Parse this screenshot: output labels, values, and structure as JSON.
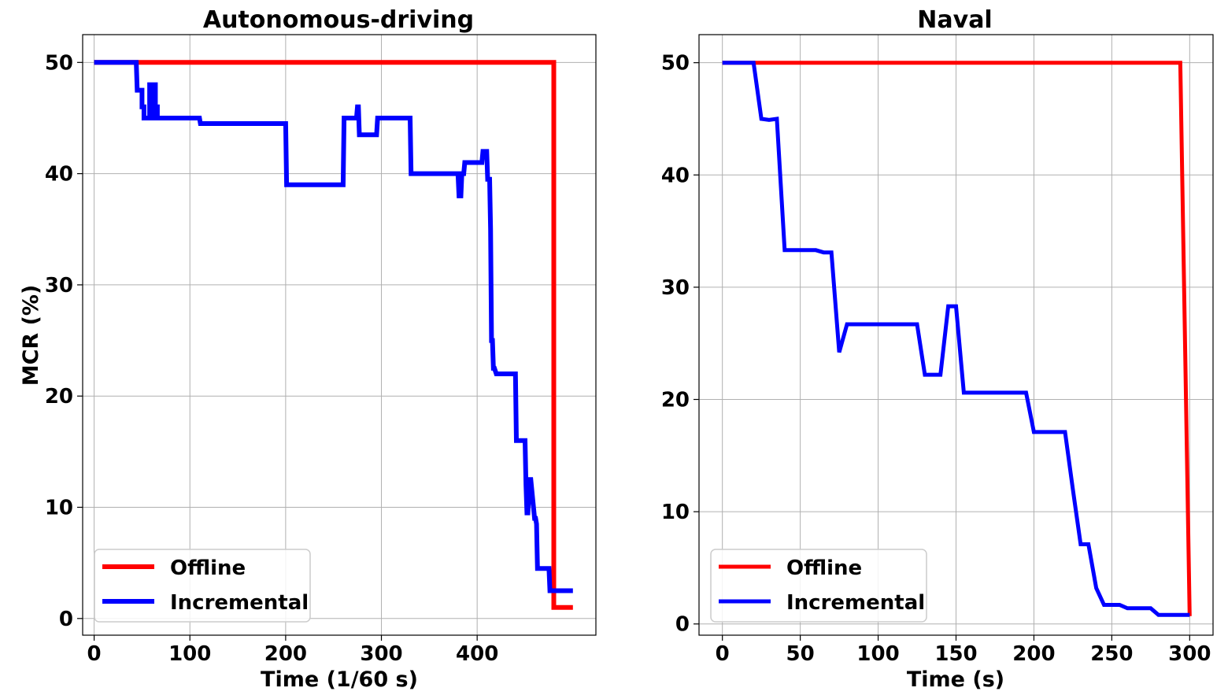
{
  "chart_data": [
    {
      "type": "line",
      "title": "Autonomous-driving",
      "xlabel": "Time (1/60 s)",
      "ylabel": "MCR (%)",
      "xlim": [
        -12,
        524
      ],
      "ylim": [
        -1.5,
        52.5
      ],
      "xticks": [
        0,
        100,
        200,
        300,
        400
      ],
      "yticks": [
        0,
        10,
        20,
        30,
        40,
        50
      ],
      "grid": true,
      "legend": "lower-left",
      "series": [
        {
          "name": "Offline",
          "color": "#ff0000",
          "x": [
            0,
            480,
            480,
            500
          ],
          "y": [
            50,
            50,
            1,
            1
          ]
        },
        {
          "name": "Incremental",
          "color": "#0000ff",
          "x": [
            0,
            44,
            45,
            50,
            50,
            52,
            52,
            58,
            58,
            60,
            60,
            62,
            62,
            64,
            64,
            66,
            66,
            110,
            111,
            200,
            201,
            260,
            261,
            274,
            275,
            276,
            277,
            295,
            296,
            330,
            331,
            380,
            381,
            383,
            384,
            386,
            387,
            405,
            406,
            410,
            411,
            413,
            414,
            415,
            416,
            417,
            418,
            420,
            421,
            440,
            441,
            450,
            451,
            452,
            453,
            455,
            456,
            460,
            461,
            462,
            463,
            465,
            466,
            475,
            476,
            480,
            481,
            500
          ],
          "y": [
            50,
            50,
            47.5,
            47.5,
            46,
            46,
            45,
            45,
            48,
            48,
            45,
            45,
            48,
            48,
            46,
            46,
            45,
            45,
            44.5,
            44.5,
            39,
            39,
            45,
            45,
            46,
            46,
            43.5,
            43.5,
            45,
            45,
            40,
            40,
            38,
            38,
            40,
            40,
            41,
            41,
            42,
            42,
            39.5,
            39.5,
            35,
            25,
            25,
            22.5,
            22.5,
            22,
            22,
            22,
            16,
            16,
            12,
            9.5,
            9.5,
            12.5,
            12.5,
            9,
            9,
            8.5,
            4.5,
            4.5,
            4.5,
            4.5,
            2.5,
            2.5,
            2.5,
            2.5
          ]
        }
      ]
    },
    {
      "type": "line",
      "title": "Naval",
      "xlabel": "Time (s)",
      "ylabel": "",
      "xlim": [
        -15,
        315
      ],
      "ylim": [
        -1,
        52.5
      ],
      "xticks": [
        0,
        50,
        100,
        150,
        200,
        250,
        300
      ],
      "yticks": [
        0,
        10,
        20,
        30,
        40,
        50
      ],
      "grid": true,
      "legend": "lower-left",
      "series": [
        {
          "name": "Offline",
          "color": "#ff0000",
          "x": [
            0,
            294,
            300
          ],
          "y": [
            50,
            50,
            0.7
          ]
        },
        {
          "name": "Incremental",
          "color": "#0000ff",
          "x": [
            0,
            20,
            25,
            30,
            35,
            40,
            60,
            65,
            70,
            75,
            80,
            125,
            130,
            140,
            145,
            150,
            155,
            195,
            200,
            220,
            225,
            230,
            235,
            240,
            245,
            250,
            255,
            260,
            270,
            275,
            280,
            300
          ],
          "y": [
            50,
            50,
            45,
            44.9,
            45,
            33.3,
            33.3,
            33.1,
            33.1,
            24.2,
            26.7,
            26.7,
            22.2,
            22.2,
            28.3,
            28.3,
            20.6,
            20.6,
            17.1,
            17.1,
            12,
            7.1,
            7.1,
            3.2,
            1.7,
            1.7,
            1.7,
            1.4,
            1.4,
            1.4,
            0.8,
            0.8
          ]
        }
      ]
    }
  ]
}
